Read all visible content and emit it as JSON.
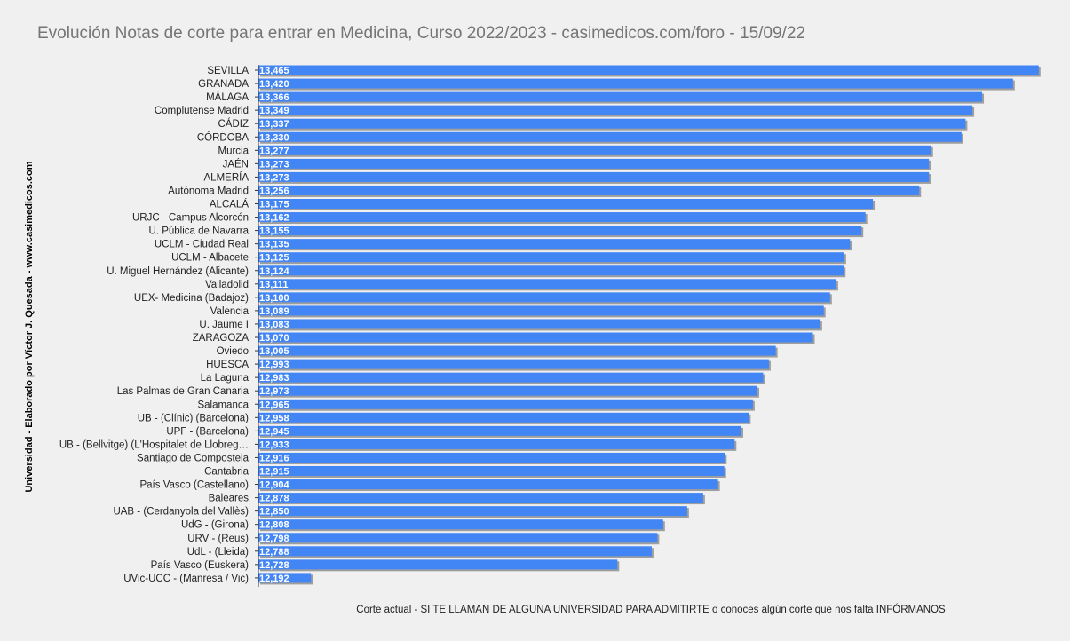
{
  "chart_data": {
    "type": "bar",
    "orientation": "horizontal",
    "title": "Evolución Notas de corte para entrar en Medicina, Curso 2022/2023 - casimedicos.com/foro - 15/09/22",
    "xlabel": "Corte actual - SI TE LLAMAN DE ALGUNA UNIVERSIDAD PARA ADMITIRTE o conoces algún corte que nos falta INFÓRMANOS",
    "ylabel": "Universidad  - Elaborado por Víctor J. Quesada - www.casimedicos.com",
    "xlim": [
      12.1,
      13.47
    ],
    "grid": false,
    "legend": "none",
    "bar_color": "#4285f4",
    "categories": [
      "SEVILLA",
      "GRANADA",
      "MÁLAGA",
      "Complutense Madrid",
      "CÁDIZ",
      "CÓRDOBA",
      "Murcia",
      "JAÉN",
      "ALMERÍA",
      "Autónoma Madrid",
      "ALCALÁ",
      "URJC - Campus Alcorcón",
      "U. Pública de Navarra",
      "UCLM - Ciudad Real",
      "UCLM - Albacete",
      "U. Miguel Hernández (Alicante)",
      "Valladolid",
      "UEX- Medicina (Badajoz)",
      "Valencia",
      "U. Jaume I",
      "ZARAGOZA",
      "Oviedo",
      "HUESCA",
      "La Laguna",
      "Las Palmas de Gran Canaria",
      "Salamanca",
      "UB - (Clínic) (Barcelona)",
      "UPF - (Barcelona)",
      "UB - (Bellvitge) (L'Hospitalet de Llobreg…",
      "Santiago de Compostela",
      "Cantabria",
      "País Vasco (Castellano)",
      "Baleares",
      "UAB - (Cerdanyola del Vallès)",
      "UdG - (Girona)",
      "URV - (Reus)",
      "UdL - (Lleida)",
      "País Vasco (Euskera)",
      "UVic-UCC - (Manresa / Vic)"
    ],
    "values": [
      13.465,
      13.42,
      13.366,
      13.349,
      13.337,
      13.33,
      13.277,
      13.273,
      13.273,
      13.256,
      13.175,
      13.162,
      13.155,
      13.135,
      13.125,
      13.124,
      13.111,
      13.1,
      13.089,
      13.083,
      13.07,
      13.005,
      12.993,
      12.983,
      12.973,
      12.965,
      12.958,
      12.945,
      12.933,
      12.916,
      12.915,
      12.904,
      12.878,
      12.85,
      12.808,
      12.798,
      12.788,
      12.728,
      12.192
    ],
    "value_labels": [
      "13,465",
      "13,420",
      "13,366",
      "13,349",
      "13,337",
      "13,330",
      "13,277",
      "13,273",
      "13,273",
      "13,256",
      "13,175",
      "13,162",
      "13,155",
      "13,135",
      "13,125",
      "13,124",
      "13,111",
      "13,100",
      "13,089",
      "13,083",
      "13,070",
      "13,005",
      "12,993",
      "12,983",
      "12,973",
      "12,965",
      "12,958",
      "12,945",
      "12,933",
      "12,916",
      "12,915",
      "12,904",
      "12,878",
      "12,850",
      "12,808",
      "12,798",
      "12,788",
      "12,728",
      "12,192"
    ]
  }
}
